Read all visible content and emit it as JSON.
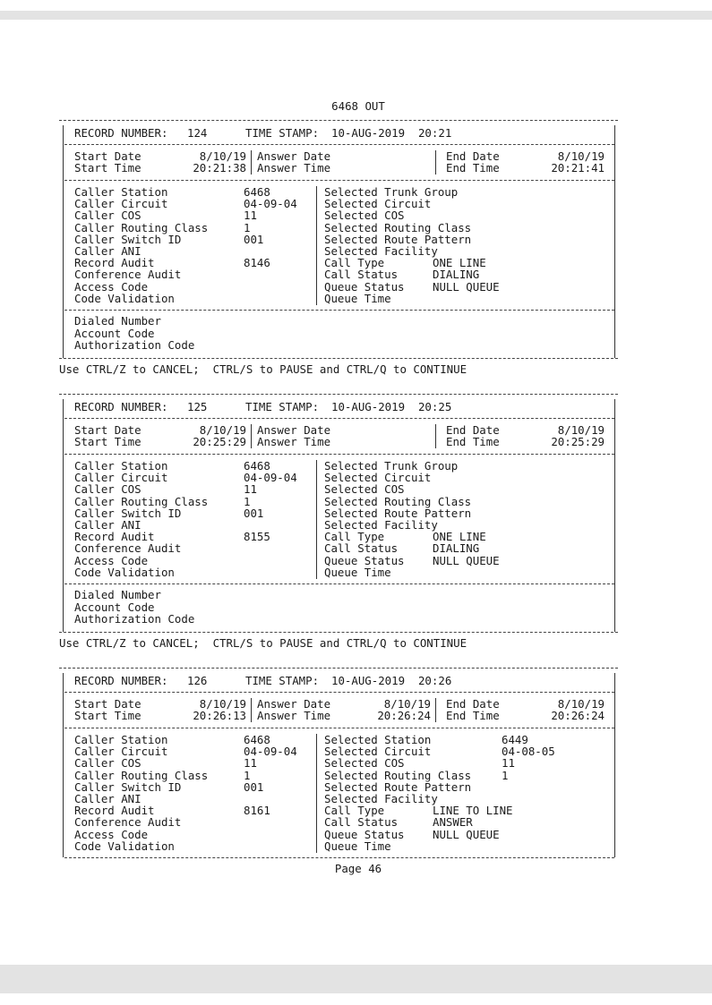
{
  "title": "6468 OUT",
  "labels": {
    "record_number": "RECORD NUMBER:",
    "time_stamp": "TIME STAMP:",
    "start_date": "Start Date",
    "start_time": "Start Time",
    "answer_date": "Answer Date",
    "answer_time": "Answer Time",
    "end_date": "End Date",
    "end_time": "End Time",
    "left_fields": [
      "Caller Station",
      "Caller Circuit",
      "Caller COS",
      "Caller Routing Class",
      "Caller Switch ID",
      "Caller ANI",
      "Record Audit",
      "Conference Audit",
      "Access Code",
      "Code Validation"
    ],
    "bottom_fields": [
      "Dialed Number",
      "Account Code",
      "Authorization Code"
    ]
  },
  "records": [
    {
      "number": "124",
      "time_stamp": "10-AUG-2019  20:21",
      "start_date": "8/10/19",
      "start_time": "20:21:38",
      "answer_date": "",
      "answer_time": "",
      "end_date": "8/10/19",
      "end_time": "20:21:41",
      "left_values": [
        "6468",
        "04-09-04",
        "11",
        "1",
        "001",
        "",
        "8146",
        "",
        "",
        ""
      ],
      "right_fields": [
        {
          "label": "Selected Trunk Group",
          "value": ""
        },
        {
          "label": "Selected Circuit",
          "value": ""
        },
        {
          "label": "Selected COS",
          "value": ""
        },
        {
          "label": "Selected Routing Class",
          "value": ""
        },
        {
          "label": "Selected Route Pattern",
          "value": ""
        },
        {
          "label": "Selected Facility",
          "value": ""
        },
        {
          "label": "Call Type",
          "value": "ONE LINE"
        },
        {
          "label": "Call Status",
          "value": "DIALING"
        },
        {
          "label": "Queue Status",
          "value": "NULL QUEUE"
        },
        {
          "label": "Queue Time",
          "value": ""
        }
      ],
      "has_bottom": true,
      "footer": "Use CTRL/Z to CANCEL;  CTRL/S to PAUSE and CTRL/Q to CONTINUE"
    },
    {
      "number": "125",
      "time_stamp": "10-AUG-2019  20:25",
      "start_date": "8/10/19",
      "start_time": "20:25:29",
      "answer_date": "",
      "answer_time": "",
      "end_date": "8/10/19",
      "end_time": "20:25:29",
      "left_values": [
        "6468",
        "04-09-04",
        "11",
        "1",
        "001",
        "",
        "8155",
        "",
        "",
        ""
      ],
      "right_fields": [
        {
          "label": "Selected Trunk Group",
          "value": ""
        },
        {
          "label": "Selected Circuit",
          "value": ""
        },
        {
          "label": "Selected COS",
          "value": ""
        },
        {
          "label": "Selected Routing Class",
          "value": ""
        },
        {
          "label": "Selected Route Pattern",
          "value": ""
        },
        {
          "label": "Selected Facility",
          "value": ""
        },
        {
          "label": "Call Type",
          "value": "ONE LINE"
        },
        {
          "label": "Call Status",
          "value": "DIALING"
        },
        {
          "label": "Queue Status",
          "value": "NULL QUEUE"
        },
        {
          "label": "Queue Time",
          "value": ""
        }
      ],
      "has_bottom": true,
      "footer": "Use CTRL/Z to CANCEL;  CTRL/S to PAUSE and CTRL/Q to CONTINUE"
    },
    {
      "number": "126",
      "time_stamp": "10-AUG-2019  20:26",
      "start_date": "8/10/19",
      "start_time": "20:26:13",
      "answer_date": "8/10/19",
      "answer_time": "20:26:24",
      "end_date": "8/10/19",
      "end_time": "20:26:24",
      "left_values": [
        "6468",
        "04-09-04",
        "11",
        "1",
        "001",
        "",
        "8161",
        "",
        "",
        ""
      ],
      "right_fields": [
        {
          "label": "Selected Station",
          "value": "6449"
        },
        {
          "label": "Selected Circuit",
          "value": "04-08-05"
        },
        {
          "label": "Selected COS",
          "value": "11"
        },
        {
          "label": "Selected Routing Class",
          "value": "1"
        },
        {
          "label": "Selected Route Pattern",
          "value": ""
        },
        {
          "label": "Selected Facility",
          "value": ""
        },
        {
          "label": "Call Type",
          "value": "LINE TO LINE"
        },
        {
          "label": "Call Status",
          "value": "ANSWER"
        },
        {
          "label": "Queue Status",
          "value": "NULL QUEUE"
        },
        {
          "label": "Queue Time",
          "value": ""
        }
      ],
      "has_bottom": false,
      "footer": ""
    }
  ],
  "page_label": "Page 46"
}
